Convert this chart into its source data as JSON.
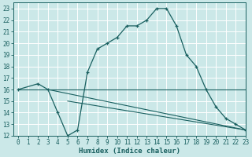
{
  "bg_color": "#cbe8e8",
  "grid_color": "#ffffff",
  "line_color": "#1a6060",
  "line1_x": [
    0,
    2,
    3,
    4,
    5,
    6,
    7,
    8,
    9,
    10,
    11,
    12,
    13,
    14,
    15,
    16,
    17,
    18,
    19,
    20,
    21,
    22,
    23
  ],
  "line1_y": [
    16,
    16.5,
    16,
    14,
    12,
    12.5,
    17.5,
    19.5,
    20,
    20.5,
    21.5,
    21.5,
    22,
    23,
    23,
    21.5,
    19,
    18,
    16,
    14.5,
    13.5,
    13,
    12.5
  ],
  "line2_x": [
    0,
    23
  ],
  "line2_y": [
    16,
    16
  ],
  "line3_x": [
    3,
    23
  ],
  "line3_y": [
    16,
    12.5
  ],
  "line4_x": [
    5,
    23
  ],
  "line4_y": [
    15,
    12.5
  ],
  "xlim": [
    -0.5,
    23
  ],
  "ylim": [
    12,
    23.5
  ],
  "xticks": [
    0,
    1,
    2,
    3,
    4,
    5,
    6,
    7,
    8,
    9,
    10,
    11,
    12,
    13,
    14,
    15,
    16,
    17,
    18,
    19,
    20,
    21,
    22,
    23
  ],
  "yticks": [
    12,
    13,
    14,
    15,
    16,
    17,
    18,
    19,
    20,
    21,
    22,
    23
  ],
  "xlabel": "Humidex (Indice chaleur)",
  "xlabel_fontsize": 6.5,
  "tick_fontsize": 5.5
}
